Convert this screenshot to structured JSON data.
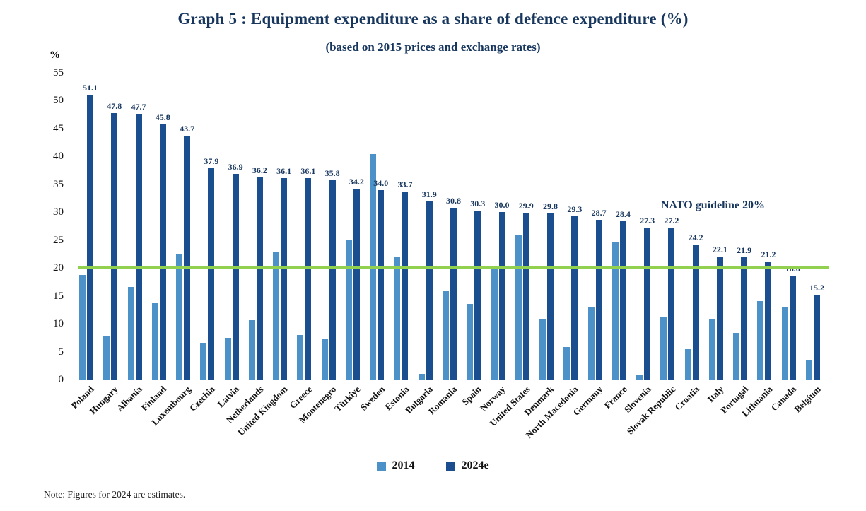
{
  "title": "Graph 5 : Equipment expenditure as a share of defence expenditure (%)",
  "subtitle": "(based on 2015 prices and exchange rates)",
  "y_axis_unit": "%",
  "note": "Note: Figures for 2024 are estimates.",
  "legend": [
    {
      "label": "2014",
      "color": "#4c92c8"
    },
    {
      "label": "2024e",
      "color": "#1b4e8f"
    }
  ],
  "chart_data": {
    "type": "bar",
    "title": "Graph 5 : Equipment expenditure as a share of defence expenditure (%)",
    "subtitle": "(based on 2015 prices and exchange rates)",
    "ylabel": "%",
    "ylim": [
      0,
      55
    ],
    "ytick_step": 5,
    "grid": false,
    "legend_position": "bottom",
    "guideline": {
      "value": 20,
      "label": "NATO guideline 20%",
      "color": "#92d050"
    },
    "categories": [
      "Poland",
      "Hungary",
      "Albania",
      "Finland",
      "Luxembourg",
      "Czechia",
      "Latvia",
      "Netherlands",
      "United Kingdom",
      "Greece",
      "Montenegro",
      "Türkiye",
      "Sweden",
      "Estonia",
      "Bulgaria",
      "Romania",
      "Spain",
      "Norway",
      "United States",
      "Denmark",
      "North Macedonia",
      "Germany",
      "France",
      "Slovenia",
      "Slovak Republic",
      "Croatia",
      "Italy",
      "Portugal",
      "Lithuania",
      "Canada",
      "Belgium"
    ],
    "series": [
      {
        "name": "2014",
        "color": "#4c92c8",
        "data_labels": false,
        "values": [
          18.8,
          7.7,
          16.6,
          13.7,
          22.6,
          6.5,
          7.5,
          10.6,
          22.8,
          8.0,
          7.4,
          25.1,
          40.4,
          22.0,
          1.0,
          15.8,
          13.5,
          19.8,
          25.9,
          10.9,
          5.8,
          12.9,
          24.6,
          0.7,
          11.1,
          5.5,
          10.9,
          8.4,
          14.1,
          13.0,
          3.4
        ]
      },
      {
        "name": "2024e",
        "color": "#1b4e8f",
        "data_labels": true,
        "values": [
          51.1,
          47.8,
          47.7,
          45.8,
          43.7,
          37.9,
          36.9,
          36.2,
          36.1,
          36.1,
          35.8,
          34.2,
          34.0,
          33.7,
          31.9,
          30.8,
          30.3,
          30.0,
          29.9,
          29.8,
          29.3,
          28.7,
          28.4,
          27.3,
          27.2,
          24.2,
          22.1,
          21.9,
          21.2,
          18.6,
          15.2
        ]
      }
    ]
  }
}
